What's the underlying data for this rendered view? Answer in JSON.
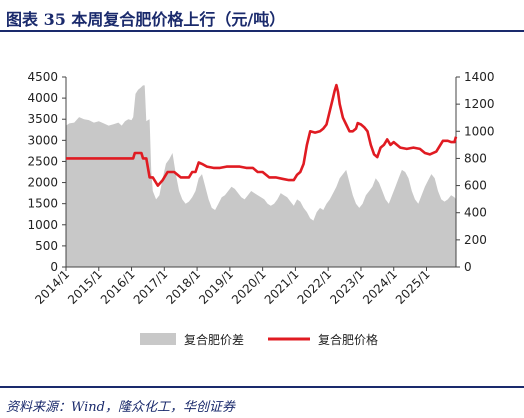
{
  "header": {
    "title": "图表 35   本周复合肥价格上行（元/吨）"
  },
  "footer": {
    "source": "资料来源：Wind，隆众化工，华创证券"
  },
  "colors": {
    "area": "#c8c8c8",
    "line": "#e01b22",
    "brand": "#1a2a6c",
    "axis": "#444444"
  },
  "chart_data": {
    "type": "line",
    "title": "",
    "x_ticks": [
      "2014/1",
      "2015/1",
      "2016/1",
      "2017/1",
      "2018/1",
      "2019/1",
      "2020/1",
      "2021/1",
      "2022/1",
      "2023/1",
      "2024/1",
      "2025/1"
    ],
    "x_range": [
      2014.0,
      2025.9
    ],
    "y_left": {
      "range": [
        0,
        4500
      ],
      "ticks": [
        "0",
        "500",
        "1000",
        "1500",
        "2000",
        "2500",
        "3000",
        "3500",
        "4000",
        "4500"
      ]
    },
    "y_right": {
      "range": [
        0,
        1400
      ],
      "ticks": [
        "0",
        "200",
        "400",
        "600",
        "800",
        "1000",
        "1200",
        "1400"
      ]
    },
    "grid": false,
    "legend_position": "bottom",
    "series": [
      {
        "name": "复合肥价差",
        "type": "area",
        "axis": "left",
        "x": [
          2014.0,
          2014.1,
          2014.25,
          2014.4,
          2014.55,
          2014.7,
          2014.85,
          2015.0,
          2015.15,
          2015.3,
          2015.45,
          2015.6,
          2015.7,
          2015.8,
          2015.9,
          2016.0,
          2016.05,
          2016.12,
          2016.2,
          2016.28,
          2016.35,
          2016.4,
          2016.45,
          2016.5,
          2016.55,
          2016.6,
          2016.65,
          2016.75,
          2016.85,
          2016.95,
          2017.05,
          2017.15,
          2017.25,
          2017.35,
          2017.45,
          2017.55,
          2017.65,
          2017.75,
          2017.85,
          2017.95,
          2018.05,
          2018.15,
          2018.25,
          2018.35,
          2018.45,
          2018.55,
          2018.65,
          2018.75,
          2018.85,
          2018.95,
          2019.05,
          2019.15,
          2019.25,
          2019.35,
          2019.45,
          2019.55,
          2019.65,
          2019.75,
          2019.85,
          2019.95,
          2020.05,
          2020.15,
          2020.25,
          2020.35,
          2020.45,
          2020.55,
          2020.65,
          2020.75,
          2020.85,
          2020.95,
          2021.05,
          2021.15,
          2021.25,
          2021.35,
          2021.45,
          2021.55,
          2021.65,
          2021.75,
          2021.85,
          2021.95,
          2022.05,
          2022.15,
          2022.25,
          2022.35,
          2022.45,
          2022.55,
          2022.65,
          2022.75,
          2022.85,
          2022.95,
          2023.05,
          2023.15,
          2023.25,
          2023.35,
          2023.45,
          2023.55,
          2023.65,
          2023.75,
          2023.85,
          2023.95,
          2024.05,
          2024.15,
          2024.25,
          2024.35,
          2024.45,
          2024.55,
          2024.65,
          2024.75,
          2024.85,
          2024.95,
          2025.05,
          2025.15,
          2025.25,
          2025.35,
          2025.45,
          2025.55,
          2025.65,
          2025.75,
          2025.85,
          2025.9
        ],
        "values": [
          3350,
          3400,
          3420,
          3550,
          3500,
          3480,
          3420,
          3450,
          3400,
          3350,
          3380,
          3420,
          3350,
          3450,
          3500,
          3480,
          3550,
          4100,
          4200,
          4250,
          4300,
          4300,
          3450,
          3480,
          3500,
          2300,
          1800,
          1600,
          1700,
          2100,
          2450,
          2550,
          2700,
          2200,
          1800,
          1600,
          1500,
          1550,
          1650,
          1800,
          2100,
          2200,
          1900,
          1600,
          1400,
          1350,
          1500,
          1650,
          1700,
          1800,
          1900,
          1850,
          1750,
          1650,
          1600,
          1700,
          1800,
          1750,
          1700,
          1650,
          1600,
          1500,
          1450,
          1500,
          1600,
          1750,
          1700,
          1650,
          1550,
          1450,
          1600,
          1550,
          1400,
          1300,
          1150,
          1100,
          1300,
          1400,
          1350,
          1500,
          1600,
          1750,
          1900,
          2100,
          2200,
          2300,
          2000,
          1700,
          1500,
          1400,
          1500,
          1700,
          1800,
          1900,
          2100,
          2000,
          1800,
          1600,
          1500,
          1700,
          1900,
          2100,
          2300,
          2250,
          2100,
          1800,
          1600,
          1500,
          1700,
          1900,
          2050,
          2200,
          2100,
          1800,
          1600,
          1550,
          1600,
          1700,
          1650,
          1600
        ]
      },
      {
        "name": "复合肥价格",
        "type": "line",
        "axis": "right",
        "x": [
          2014.0,
          2016.05,
          2016.1,
          2016.3,
          2016.35,
          2016.45,
          2016.55,
          2016.65,
          2016.8,
          2016.95,
          2017.1,
          2017.3,
          2017.5,
          2017.75,
          2017.85,
          2017.95,
          2018.05,
          2018.15,
          2018.3,
          2018.5,
          2018.7,
          2018.9,
          2019.1,
          2019.3,
          2019.5,
          2019.7,
          2019.85,
          2020.0,
          2020.2,
          2020.4,
          2020.6,
          2020.8,
          2020.95,
          2021.05,
          2021.15,
          2021.25,
          2021.35,
          2021.45,
          2021.6,
          2021.75,
          2021.85,
          2021.95,
          2022.05,
          2022.15,
          2022.2,
          2022.25,
          2022.3,
          2022.35,
          2022.45,
          2022.55,
          2022.65,
          2022.75,
          2022.85,
          2022.9,
          2023.0,
          2023.1,
          2023.2,
          2023.3,
          2023.4,
          2023.5,
          2023.6,
          2023.7,
          2023.8,
          2023.9,
          2024.0,
          2024.1,
          2024.2,
          2024.4,
          2024.6,
          2024.8,
          2024.95,
          2025.1,
          2025.3,
          2025.5,
          2025.65,
          2025.75,
          2025.85,
          2025.9
        ],
        "values": [
          800,
          800,
          840,
          840,
          800,
          800,
          660,
          660,
          600,
          640,
          700,
          700,
          660,
          660,
          700,
          700,
          770,
          760,
          740,
          730,
          730,
          740,
          740,
          740,
          730,
          730,
          700,
          700,
          660,
          660,
          650,
          640,
          640,
          680,
          700,
          760,
          900,
          1000,
          990,
          1000,
          1020,
          1050,
          1150,
          1250,
          1300,
          1340,
          1290,
          1200,
          1100,
          1050,
          1000,
          1000,
          1020,
          1060,
          1050,
          1030,
          1000,
          900,
          830,
          810,
          880,
          900,
          940,
          900,
          920,
          900,
          880,
          870,
          880,
          870,
          840,
          830,
          850,
          930,
          930,
          920,
          920,
          960
        ]
      }
    ]
  }
}
